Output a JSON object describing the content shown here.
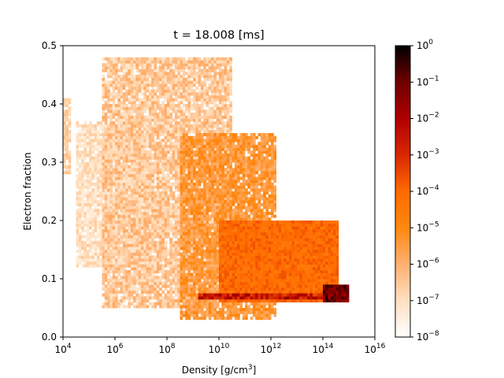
{
  "chart_data": {
    "type": "heatmap",
    "title": "t = 18.008 [ms]",
    "xlabel": "Density [g/cm",
    "xlabel_sup": "3",
    "xlabel_close": "]",
    "ylabel": "Electron fraction",
    "x_scale": "log",
    "xlim": [
      10000,
      10000000000000000
    ],
    "ylim": [
      0.0,
      0.5
    ],
    "x_ticks": [
      {
        "value": 10000,
        "base": "10",
        "exp": "4"
      },
      {
        "value": 1000000,
        "base": "10",
        "exp": "6"
      },
      {
        "value": 100000000,
        "base": "10",
        "exp": "8"
      },
      {
        "value": 10000000000,
        "base": "10",
        "exp": "10"
      },
      {
        "value": 1000000000000,
        "base": "10",
        "exp": "12"
      },
      {
        "value": 100000000000000,
        "base": "10",
        "exp": "14"
      },
      {
        "value": 10000000000000000,
        "base": "10",
        "exp": "16"
      }
    ],
    "y_ticks": [
      {
        "value": 0.0,
        "label": "0.0"
      },
      {
        "value": 0.1,
        "label": "0.1"
      },
      {
        "value": 0.2,
        "label": "0.2"
      },
      {
        "value": 0.3,
        "label": "0.3"
      },
      {
        "value": 0.4,
        "label": "0.4"
      },
      {
        "value": 0.5,
        "label": "0.5"
      }
    ],
    "colorbar": {
      "scale": "log",
      "range": [
        1e-08,
        1
      ],
      "colormap": [
        "#ffffff",
        "#ffe0c0",
        "#ffb070",
        "#ff8810",
        "#ff6a00",
        "#d82800",
        "#b00000",
        "#700000",
        "#000000"
      ],
      "ticks": [
        {
          "value": 1e-08,
          "base": "10",
          "exp": "−8"
        },
        {
          "value": 1e-07,
          "base": "10",
          "exp": "−7"
        },
        {
          "value": 1e-06,
          "base": "10",
          "exp": "−6"
        },
        {
          "value": 1e-05,
          "base": "10",
          "exp": "−5"
        },
        {
          "value": 0.0001,
          "base": "10",
          "exp": "−4"
        },
        {
          "value": 0.001,
          "base": "10",
          "exp": "−3"
        },
        {
          "value": 0.01,
          "base": "10",
          "exp": "−2"
        },
        {
          "value": 0.1,
          "base": "10",
          "exp": "−1"
        },
        {
          "value": 1,
          "base": "10",
          "exp": "0"
        }
      ]
    },
    "regions": [
      {
        "log10_density": [
          4.0,
          4.3
        ],
        "ye": [
          0.28,
          0.41
        ],
        "log10_value_range": [
          -7.0,
          -6.2
        ]
      },
      {
        "log10_density": [
          4.5,
          7.5
        ],
        "ye": [
          0.12,
          0.37
        ],
        "log10_value_range": [
          -7.5,
          -6.5
        ]
      },
      {
        "log10_density": [
          5.5,
          10.5
        ],
        "ye": [
          0.05,
          0.48
        ],
        "log10_value_range": [
          -7.2,
          -5.8
        ]
      },
      {
        "log10_density": [
          8.5,
          12.2
        ],
        "ye": [
          0.03,
          0.35
        ],
        "log10_value_range": [
          -6.0,
          -4.8
        ]
      },
      {
        "log10_density": [
          10.0,
          14.6
        ],
        "ye": [
          0.06,
          0.2
        ],
        "log10_value_range": [
          -4.6,
          -3.6
        ]
      },
      {
        "log10_density": [
          9.2,
          14.8
        ],
        "ye": [
          0.065,
          0.075
        ],
        "log10_value_range": [
          -3.5,
          -1.5
        ]
      },
      {
        "log10_density": [
          14.0,
          14.95
        ],
        "ye": [
          0.06,
          0.09
        ],
        "log10_value_range": [
          -2.0,
          -0.3
        ]
      }
    ]
  }
}
